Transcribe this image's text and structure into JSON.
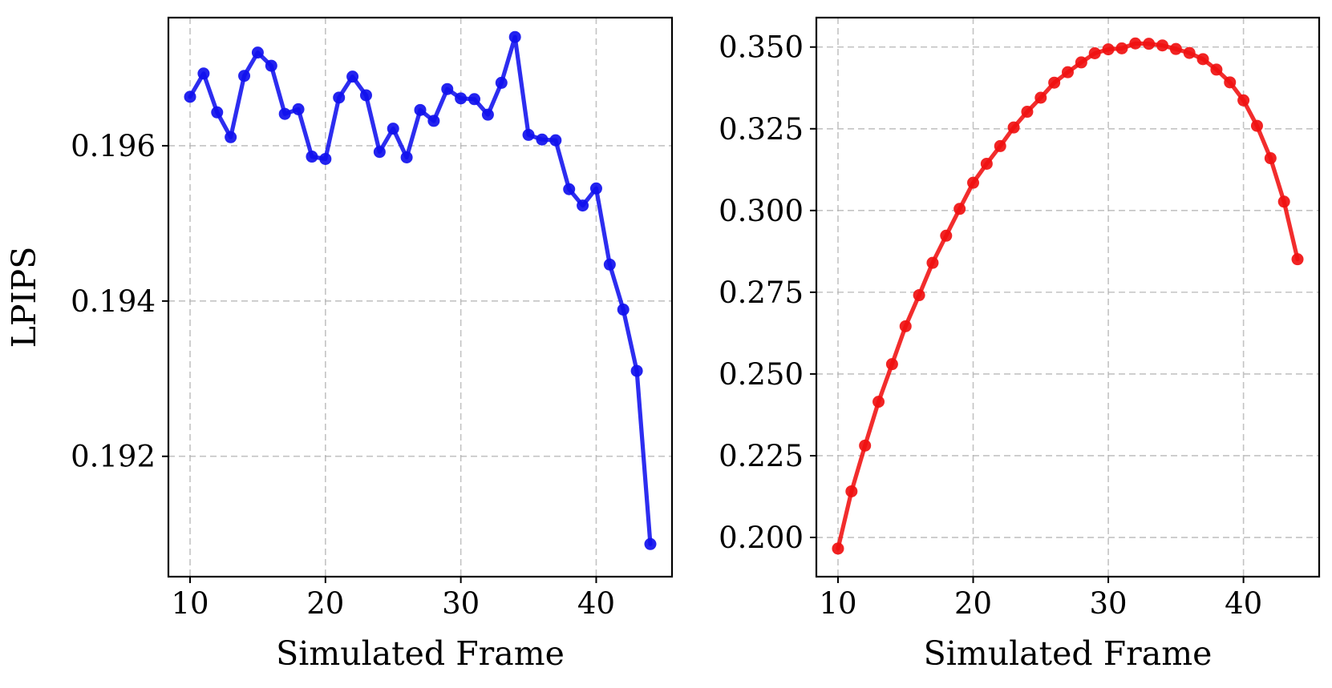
{
  "chart_data": [
    {
      "type": "line",
      "title": "",
      "xlabel": "Simulated Frame",
      "ylabel": "LPIPS",
      "xlim": [
        8.4,
        45.6
      ],
      "ylim": [
        0.19045,
        0.19765
      ],
      "xticks": [
        10,
        20,
        30,
        40
      ],
      "yticks": [
        0.192,
        0.194,
        0.196
      ],
      "ytick_labels": [
        "0.192",
        "0.194",
        "0.196"
      ],
      "grid": true,
      "legend": "none",
      "series": [
        {
          "color": "#1010ee",
          "marker": "circle",
          "x": [
            10,
            11,
            12,
            13,
            14,
            15,
            16,
            17,
            18,
            19,
            20,
            21,
            22,
            23,
            24,
            25,
            26,
            27,
            28,
            29,
            30,
            31,
            32,
            33,
            34,
            35,
            36,
            37,
            38,
            39,
            40,
            41,
            42,
            43,
            44
          ],
          "values": [
            0.19663,
            0.19693,
            0.19643,
            0.19611,
            0.1969,
            0.1972,
            0.19703,
            0.19641,
            0.19647,
            0.19586,
            0.19583,
            0.19662,
            0.19689,
            0.19665,
            0.19592,
            0.19622,
            0.19585,
            0.19646,
            0.19632,
            0.19673,
            0.19661,
            0.1966,
            0.1964,
            0.19681,
            0.1974,
            0.19614,
            0.19608,
            0.19607,
            0.19544,
            0.19523,
            0.19545,
            0.19447,
            0.19389,
            0.1931,
            0.19087
          ]
        }
      ]
    },
    {
      "type": "line",
      "title": "",
      "xlabel": "Simulated Frame",
      "ylabel": "",
      "xlim": [
        8.4,
        45.6
      ],
      "ylim": [
        0.188,
        0.359
      ],
      "xticks": [
        10,
        20,
        30,
        40
      ],
      "yticks": [
        0.2,
        0.225,
        0.25,
        0.275,
        0.3,
        0.325,
        0.35
      ],
      "ytick_labels": [
        "0.200",
        "0.225",
        "0.250",
        "0.275",
        "0.300",
        "0.325",
        "0.350"
      ],
      "grid": true,
      "legend": "none",
      "series": [
        {
          "color": "#f01010",
          "marker": "circle",
          "x": [
            10,
            11,
            12,
            13,
            14,
            15,
            16,
            17,
            18,
            19,
            20,
            21,
            22,
            23,
            24,
            25,
            26,
            27,
            28,
            29,
            30,
            31,
            32,
            33,
            34,
            35,
            36,
            37,
            38,
            39,
            40,
            41,
            42,
            43,
            44
          ],
          "values": [
            0.1966,
            0.2141,
            0.2281,
            0.2415,
            0.253,
            0.2646,
            0.2741,
            0.284,
            0.2923,
            0.3005,
            0.3085,
            0.3143,
            0.3197,
            0.3254,
            0.3302,
            0.3345,
            0.3391,
            0.3423,
            0.3453,
            0.3481,
            0.3493,
            0.3496,
            0.3511,
            0.351,
            0.3505,
            0.3494,
            0.3482,
            0.3463,
            0.3431,
            0.3392,
            0.3337,
            0.3259,
            0.316,
            0.3027,
            0.2851
          ]
        }
      ]
    }
  ]
}
